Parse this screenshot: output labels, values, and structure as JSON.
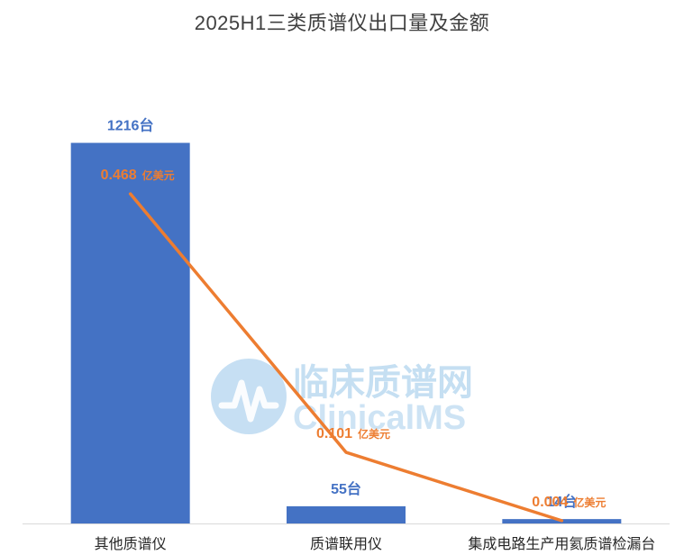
{
  "chart_data": {
    "type": "bar",
    "title": "2025H1三类质谱仪出口量及金额",
    "categories": [
      "其他质谱仪",
      "质谱联用仪",
      "集成电路生产用氦质谱检漏台"
    ],
    "series": [
      {
        "type": "bar",
        "values": [
          1216,
          55,
          14
        ],
        "labels": [
          "1216台",
          "55台",
          "14台"
        ],
        "color": "#4472C4",
        "axis": "left",
        "ylim": [
          0,
          1350
        ]
      },
      {
        "type": "line",
        "values": [
          0.468,
          0.101,
          0.004
        ],
        "labels": [
          "0.468",
          "0.101",
          "0.004"
        ],
        "unit": "亿美元",
        "color": "#ED7D31",
        "axis": "right",
        "ylim": [
          0,
          0.6
        ]
      }
    ],
    "grid": false,
    "legend": "none"
  },
  "watermark": {
    "text_cn": "临床质谱网",
    "text_en": "ClinicalMS",
    "color": "#5BA4DC"
  }
}
